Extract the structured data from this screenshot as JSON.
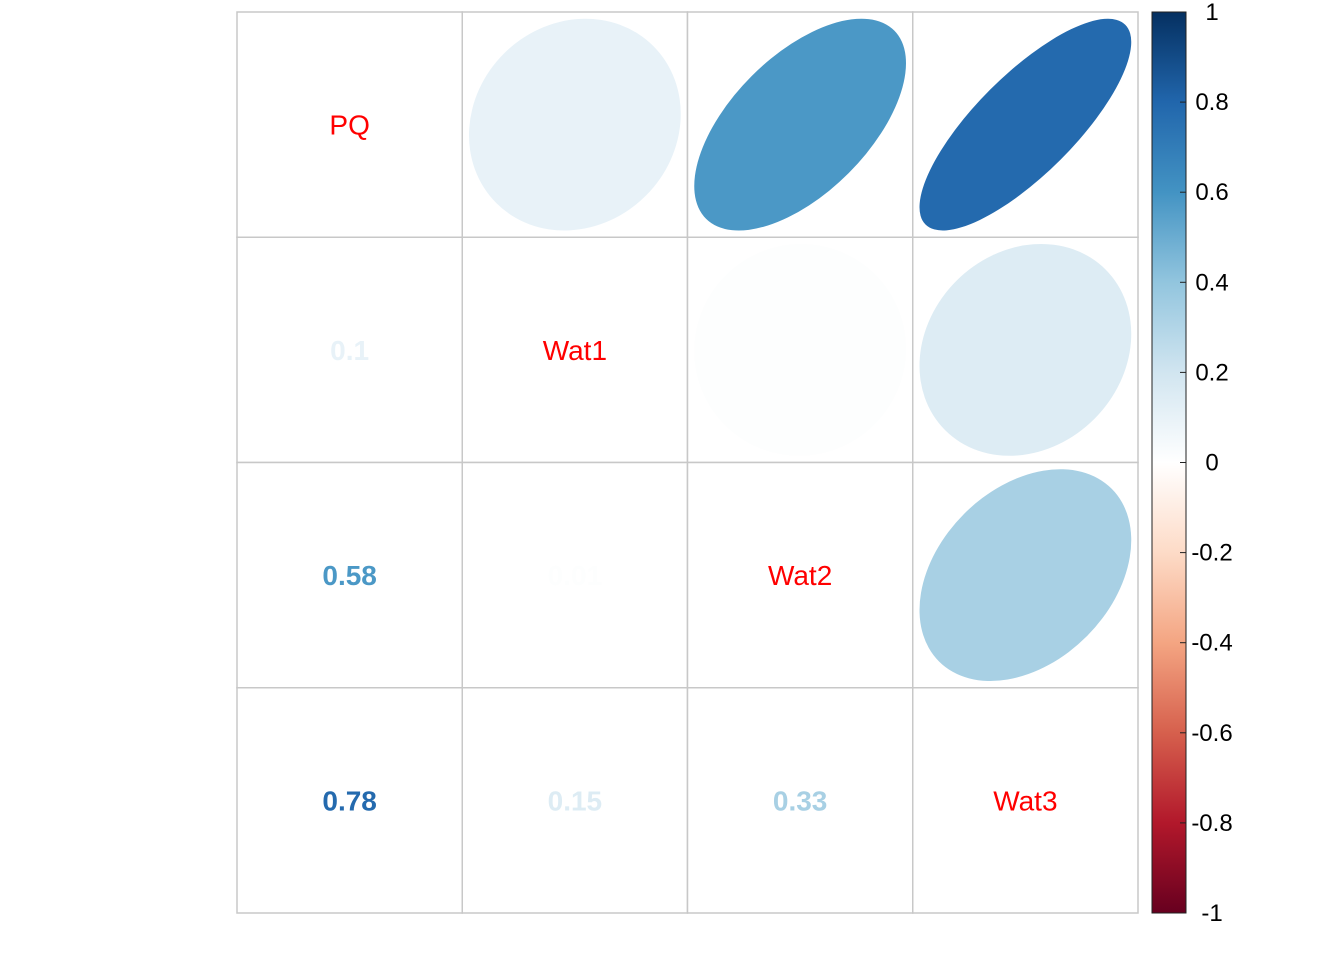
{
  "chart_data": {
    "type": "heatmap",
    "subtype": "correlation-matrix (corrplot mixed: ellipses upper, numbers lower)",
    "variables": [
      "PQ",
      "Wat1",
      "Wat2",
      "Wat3"
    ],
    "matrix": [
      [
        1.0,
        0.1,
        0.58,
        0.78
      ],
      [
        0.1,
        1.0,
        0.01,
        0.15
      ],
      [
        0.58,
        0.01,
        1.0,
        0.33
      ],
      [
        0.78,
        0.15,
        0.33,
        1.0
      ]
    ],
    "lower_labels": [
      {
        "row": 1,
        "col": 0,
        "text": "0.1",
        "value": 0.1
      },
      {
        "row": 2,
        "col": 0,
        "text": "0.58",
        "value": 0.58
      },
      {
        "row": 2,
        "col": 1,
        "text": "0.01",
        "value": 0.01
      },
      {
        "row": 3,
        "col": 0,
        "text": "0.78",
        "value": 0.78
      },
      {
        "row": 3,
        "col": 1,
        "text": "0.15",
        "value": 0.15
      },
      {
        "row": 3,
        "col": 2,
        "text": "0.33",
        "value": 0.33
      }
    ],
    "diagonal_label_color": "#ff0000",
    "colorbar": {
      "range": [
        -1,
        1
      ],
      "ticks": [
        "1",
        "0.8",
        "0.6",
        "0.4",
        "0.2",
        "0",
        "-0.2",
        "-0.4",
        "-0.6",
        "-0.8",
        "-1"
      ],
      "palette": [
        "#67001F",
        "#B2182B",
        "#D6604D",
        "#F4A582",
        "#FDDBC7",
        "#FFFFFF",
        "#D1E5F0",
        "#92C5DE",
        "#4393C3",
        "#2166AC",
        "#053061"
      ]
    },
    "grid": true,
    "grid_color": "#c8c8c8",
    "legend_position": "right"
  }
}
